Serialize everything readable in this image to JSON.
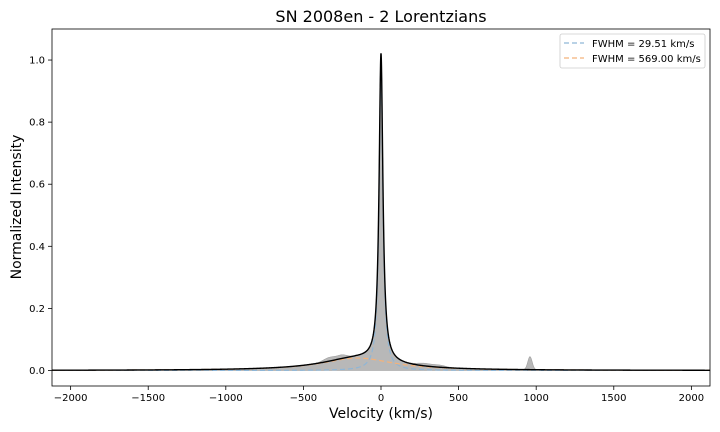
{
  "chart_data": {
    "type": "line",
    "title": "SN 2008en - 2 Lorentzians",
    "xlabel": "Velocity (km/s)",
    "ylabel": "Normalized Intensity",
    "xlim": [
      -2120,
      2120
    ],
    "ylim": [
      -0.05,
      1.1
    ],
    "xticks": [
      -2000,
      -1500,
      -1000,
      -500,
      0,
      500,
      1000,
      1500,
      2000
    ],
    "xtick_labels": [
      "−2000",
      "−1500",
      "−1000",
      "−500",
      "0",
      "500",
      "1000",
      "1500",
      "2000"
    ],
    "yticks": [
      0.0,
      0.2,
      0.4,
      0.6,
      0.8,
      1.0
    ],
    "ytick_labels": [
      "0.0",
      "0.2",
      "0.4",
      "0.6",
      "0.8",
      "1.0"
    ],
    "legend_position": "top-right",
    "grid": false,
    "series": [
      {
        "name": "FWHM = 29.51 km/s",
        "kind": "lorentzian",
        "center": 0,
        "fwhm": 29.51,
        "amplitude": 0.99,
        "color": "#8fb6d6",
        "style": "dashed"
      },
      {
        "name": "FWHM = 569.00 km/s",
        "kind": "lorentzian",
        "center": -150,
        "fwhm": 569.0,
        "amplitude": 0.04,
        "color": "#f4b27a",
        "style": "dashed"
      }
    ],
    "fit": {
      "color": "#000000",
      "style": "solid"
    },
    "observed_profile": {
      "color": "#b8b8b8",
      "extra_features": [
        {
          "center": -330,
          "amplitude": 0.012,
          "width": 40
        },
        {
          "center": -250,
          "amplitude": 0.01,
          "width": 30
        },
        {
          "center": 280,
          "amplitude": 0.008,
          "width": 50
        },
        {
          "center": 380,
          "amplitude": 0.006,
          "width": 40
        },
        {
          "center": 960,
          "amplitude": 0.042,
          "width": 14
        }
      ]
    }
  }
}
